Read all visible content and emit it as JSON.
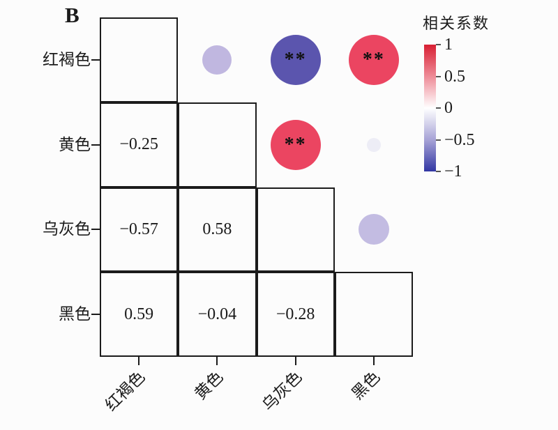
{
  "panel_label": "B",
  "legend": {
    "title": "相关系数",
    "ticks": [
      "1",
      "0.5",
      "0",
      "−0.5",
      "−1"
    ],
    "tick_values": [
      1,
      0.5,
      0,
      -0.5,
      -1
    ],
    "gradient": [
      "#d81f33",
      "#ee8b97",
      "#ffffff",
      "#a7a3d6",
      "#3136a3"
    ]
  },
  "chart_data": {
    "type": "heatmap",
    "subtype": "correlation-matrix",
    "panel": "B",
    "title": "",
    "legend_title": "相关系数",
    "categories": [
      "红褐色",
      "黄色",
      "乌灰色",
      "黑色"
    ],
    "colorbar_range": [
      -1,
      1
    ],
    "colorbar_ticks": [
      1,
      0.5,
      0,
      -0.5,
      -1
    ],
    "lower_triangle_style": "numbers",
    "upper_triangle_style": "circles",
    "grid_color": "#1b1b1b",
    "pairs": [
      {
        "row": "黄色",
        "col": "红褐色",
        "value": -0.25,
        "label": "−0.25",
        "significance": "",
        "circle_color": "#c0b7e0",
        "circle_radius": 21
      },
      {
        "row": "乌灰色",
        "col": "红褐色",
        "value": -0.57,
        "label": "−0.57",
        "significance": "**",
        "circle_color": "#5b55ae",
        "circle_radius": 36
      },
      {
        "row": "乌灰色",
        "col": "黄色",
        "value": 0.58,
        "label": "0.58",
        "significance": "**",
        "circle_color": "#eb4561",
        "circle_radius": 36
      },
      {
        "row": "黑色",
        "col": "红褐色",
        "value": 0.59,
        "label": "0.59",
        "significance": "**",
        "circle_color": "#eb4561",
        "circle_radius": 36
      },
      {
        "row": "黑色",
        "col": "黄色",
        "value": -0.04,
        "label": "−0.04",
        "significance": "",
        "circle_color": "#ededf6",
        "circle_radius": 10
      },
      {
        "row": "黑色",
        "col": "乌灰色",
        "value": -0.28,
        "label": "−0.28",
        "significance": "",
        "circle_color": "#c3bce2",
        "circle_radius": 22
      }
    ]
  }
}
